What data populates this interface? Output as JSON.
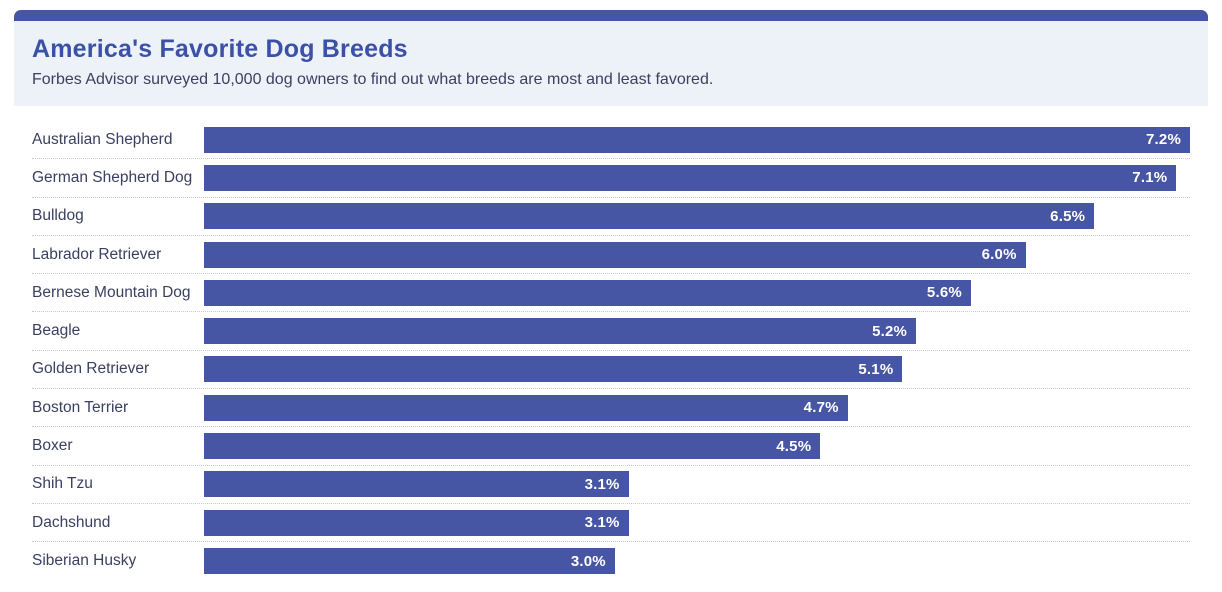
{
  "header": {
    "title": "America's Favorite Dog Breeds",
    "subtitle": "Forbes Advisor surveyed 10,000 dog owners to find out what breeds are most and least favored."
  },
  "colors": {
    "accent_strip": "#4655A4",
    "header_background": "#EDF1F8",
    "title_text": "#3A51A7",
    "body_text": "#3A4060",
    "bar_fill": "#4655A4",
    "bar_value_text": "#FFFFFF",
    "row_separator": "#C9C9C9"
  },
  "chart_data": {
    "type": "bar",
    "orientation": "horizontal",
    "title": "America's Favorite Dog Breeds",
    "subtitle": "Forbes Advisor surveyed 10,000 dog owners to find out what breeds are most and least favored.",
    "categories": [
      "Australian Shepherd",
      "German Shepherd Dog",
      "Bulldog",
      "Labrador Retriever",
      "Bernese Mountain Dog",
      "Beagle",
      "Golden Retriever",
      "Boston Terrier",
      "Boxer",
      "Shih Tzu",
      "Dachshund",
      "Siberian Husky"
    ],
    "values": [
      7.2,
      7.1,
      6.5,
      6.0,
      5.6,
      5.2,
      5.1,
      4.7,
      4.5,
      3.1,
      3.1,
      3.0
    ],
    "value_labels": [
      "7.2%",
      "7.1%",
      "6.5%",
      "6.0%",
      "5.6%",
      "5.2%",
      "5.1%",
      "4.7%",
      "4.5%",
      "3.1%",
      "3.1%",
      "3.0%"
    ],
    "xlabel": "",
    "ylabel": "",
    "xlim": [
      0,
      7.2
    ],
    "grid": false,
    "legend": false,
    "value_label_position": "inside-end"
  }
}
